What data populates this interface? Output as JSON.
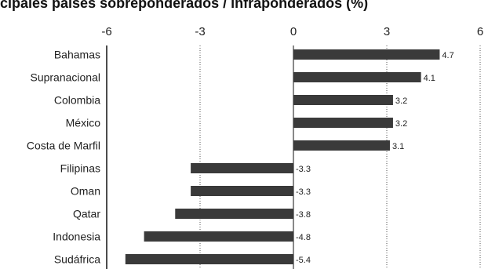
{
  "chart_data": {
    "type": "bar",
    "orientation": "horizontal",
    "title": "cipales países sobreponderados / infraponderados (%)",
    "categories": [
      "Bahamas",
      "Supranacional",
      "Colombia",
      "México",
      "Costa de Marfil",
      "Filipinas",
      "Oman",
      "Qatar",
      "Indonesia",
      "Sudáfrica"
    ],
    "values": [
      4.7,
      4.1,
      3.2,
      3.2,
      3.1,
      -3.3,
      -3.3,
      -3.8,
      -4.8,
      -5.4
    ],
    "data_labels": [
      "4.7",
      "4.1",
      "3.2",
      "3.2",
      "3.1",
      "-3.3",
      "-3.3",
      "-3.8",
      "-4.8",
      "-5.4"
    ],
    "xticks": [
      -6,
      -3,
      0,
      3,
      6
    ],
    "xtick_labels": [
      "-6",
      "-3",
      "0",
      "3",
      "6"
    ],
    "xlim": [
      -6,
      6
    ],
    "grid": "vertical dotted at ±3",
    "bar_color": "#3a3a3a"
  }
}
